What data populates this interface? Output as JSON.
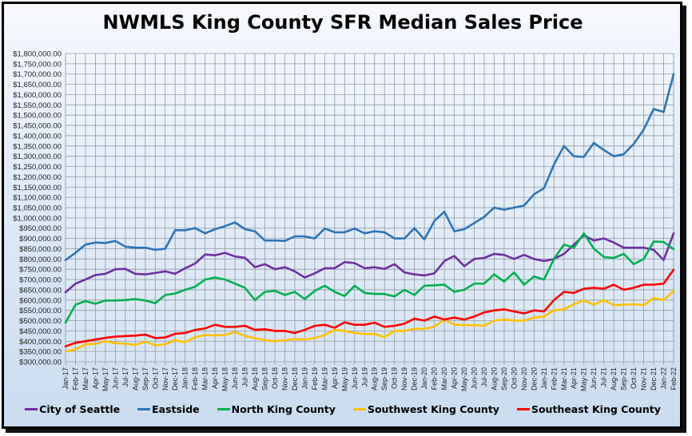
{
  "chart_data": {
    "type": "line",
    "title": "NWMLS King County SFR Median Sales Price",
    "xlabel": "",
    "ylabel": "",
    "ylim": [
      300000,
      1800000
    ],
    "ytick_step": 50000,
    "grid": true,
    "legend_position": "bottom",
    "x": [
      "Jan-17",
      "Feb-17",
      "Mar-17",
      "Apr-17",
      "May-17",
      "Jun-17",
      "Jul-17",
      "Aug-17",
      "Sep-17",
      "Oct-17",
      "Nov-17",
      "Dec-17",
      "Jan-18",
      "Feb-18",
      "Mar-18",
      "Apr-18",
      "May-18",
      "Jun-18",
      "Jul-18",
      "Aug-18",
      "Sep-18",
      "Oct-18",
      "Nov-18",
      "Dec-18",
      "Jan-19",
      "Feb-19",
      "Mar-19",
      "Apr-19",
      "May-19",
      "Jun-19",
      "Jul-19",
      "Aug-19",
      "Sep-19",
      "Oct-19",
      "Nov-19",
      "Dec-19",
      "Jan-20",
      "Feb-20",
      "Mar-20",
      "Apr-20",
      "May-20",
      "Jun-20",
      "Jul-20",
      "Aug-20",
      "Sep-20",
      "Oct-20",
      "Nov-20",
      "Dec-20",
      "Jan-21",
      "Feb-21",
      "Mar-21",
      "Apr-21",
      "May-21",
      "Jun-21",
      "Jul-21",
      "Aug-21",
      "Sep-21",
      "Oct-21",
      "Nov-21",
      "Dec-21",
      "Jan-22",
      "Feb-22"
    ],
    "yticks": [
      "$300,000.00",
      "$350,000.00",
      "$400,000.00",
      "$450,000.00",
      "$500,000.00",
      "$550,000.00",
      "$600,000.00",
      "$650,000.00",
      "$700,000.00",
      "$750,000.00",
      "$800,000.00",
      "$850,000.00",
      "$900,000.00",
      "$950,000.00",
      "$1,000,000.00",
      "$1,050,000.00",
      "$1,100,000.00",
      "$1,150,000.00",
      "$1,200,000.00",
      "$1,250,000.00",
      "$1,300,000.00",
      "$1,350,000.00",
      "$1,400,000.00",
      "$1,450,000.00",
      "$1,500,000.00",
      "$1,550,000.00",
      "$1,600,000.00",
      "$1,650,000.00",
      "$1,700,000.00",
      "$1,750,000.00",
      "$1,800,000.00"
    ],
    "series": [
      {
        "name": "City of Seattle",
        "color": "#7030a0",
        "values": [
          638000,
          680000,
          700000,
          722000,
          728000,
          750000,
          752000,
          728000,
          725000,
          732000,
          740000,
          728000,
          755000,
          778000,
          822000,
          818000,
          830000,
          812000,
          806000,
          760000,
          775000,
          750000,
          760000,
          740000,
          710000,
          730000,
          755000,
          755000,
          785000,
          780000,
          755000,
          760000,
          752000,
          775000,
          735000,
          725000,
          720000,
          730000,
          790000,
          815000,
          765000,
          800000,
          805000,
          825000,
          820000,
          800000,
          820000,
          800000,
          790000,
          800000,
          825000,
          870000,
          915000,
          890000,
          900000,
          880000,
          855000,
          855000,
          855000,
          845000,
          795000,
          925000
        ]
      },
      {
        "name": "Eastside",
        "color": "#2e75b6",
        "values": [
          795000,
          830000,
          870000,
          880000,
          878000,
          888000,
          860000,
          855000,
          855000,
          845000,
          850000,
          940000,
          940000,
          950000,
          925000,
          945000,
          960000,
          978000,
          945000,
          935000,
          890000,
          890000,
          888000,
          910000,
          910000,
          900000,
          948000,
          930000,
          930000,
          948000,
          925000,
          935000,
          930000,
          900000,
          900000,
          950000,
          895000,
          985000,
          1030000,
          935000,
          945000,
          975000,
          1005000,
          1050000,
          1040000,
          1050000,
          1060000,
          1115000,
          1145000,
          1260000,
          1350000,
          1300000,
          1297000,
          1365000,
          1330000,
          1300000,
          1310000,
          1360000,
          1430000,
          1530000,
          1515000,
          1700000
        ]
      },
      {
        "name": "North King County",
        "color": "#00b050",
        "values": [
          490000,
          578000,
          595000,
          582000,
          598000,
          598000,
          600000,
          605000,
          598000,
          585000,
          625000,
          632000,
          650000,
          665000,
          700000,
          710000,
          700000,
          680000,
          660000,
          600000,
          640000,
          645000,
          625000,
          640000,
          605000,
          645000,
          670000,
          640000,
          620000,
          670000,
          635000,
          630000,
          630000,
          618000,
          650000,
          625000,
          670000,
          672000,
          675000,
          640000,
          650000,
          680000,
          680000,
          725000,
          690000,
          735000,
          675000,
          715000,
          700000,
          800000,
          870000,
          855000,
          925000,
          850000,
          810000,
          805000,
          825000,
          775000,
          800000,
          885000,
          883000,
          848000
        ]
      },
      {
        "name": "Southwest King County",
        "color": "#ffc000",
        "values": [
          350000,
          360000,
          385000,
          387000,
          400000,
          390000,
          388000,
          382000,
          398000,
          380000,
          385000,
          405000,
          395000,
          420000,
          430000,
          428000,
          430000,
          445000,
          425000,
          415000,
          405000,
          400000,
          405000,
          410000,
          408000,
          415000,
          430000,
          455000,
          450000,
          440000,
          435000,
          435000,
          420000,
          450000,
          450000,
          460000,
          460000,
          470000,
          505000,
          480000,
          478000,
          478000,
          475000,
          500000,
          505000,
          500000,
          500000,
          515000,
          520000,
          550000,
          555000,
          580000,
          598000,
          578000,
          600000,
          575000,
          578000,
          580000,
          575000,
          610000,
          600000,
          645000
        ]
      },
      {
        "name": "Southeast King County",
        "color": "#ff0000",
        "values": [
          375000,
          392000,
          400000,
          408000,
          416000,
          422000,
          425000,
          427000,
          432000,
          415000,
          418000,
          436000,
          440000,
          455000,
          462000,
          480000,
          470000,
          470000,
          475000,
          455000,
          458000,
          450000,
          450000,
          440000,
          455000,
          475000,
          480000,
          465000,
          492000,
          480000,
          480000,
          490000,
          470000,
          475000,
          485000,
          510000,
          500000,
          520000,
          505000,
          515000,
          505000,
          520000,
          540000,
          550000,
          555000,
          545000,
          535000,
          550000,
          545000,
          600000,
          640000,
          635000,
          655000,
          660000,
          655000,
          675000,
          650000,
          660000,
          675000,
          675000,
          680000,
          748000
        ]
      }
    ]
  },
  "colors": {
    "grid": "#8f9aa6",
    "frame": "#000000"
  }
}
